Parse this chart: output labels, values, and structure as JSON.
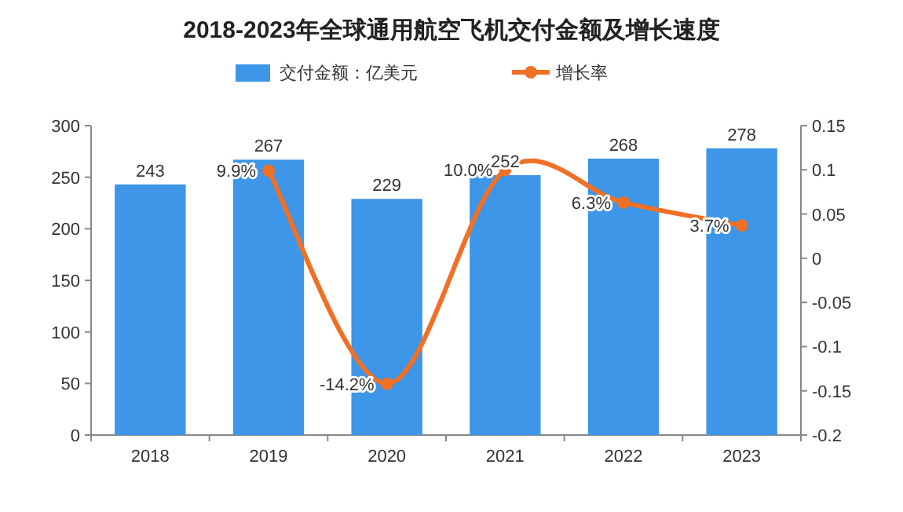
{
  "chart_data": {
    "type": "bar",
    "title": "2018-2023年全球通用航空飞机交付金额及增长速度",
    "categories": [
      "2018",
      "2019",
      "2020",
      "2021",
      "2022",
      "2023"
    ],
    "series": [
      {
        "name": "交付金额：亿美元",
        "color": "#3d96e8",
        "values": [
          243,
          267,
          229,
          252,
          268,
          278
        ],
        "value_labels": [
          "243",
          "267",
          "229",
          "252",
          "268",
          "278"
        ]
      },
      {
        "name": "增长率",
        "type": "line",
        "axis": "y2",
        "color": "#f07026",
        "marker": "circle",
        "line_style": "solid",
        "values": [
          null,
          0.099,
          -0.142,
          0.1,
          0.063,
          0.037
        ],
        "value_labels": [
          null,
          "9.9%",
          "-14.2%",
          "10.0%",
          "6.3%",
          "3.7%"
        ]
      }
    ],
    "ylim": [
      0,
      300
    ],
    "yticks": [
      0,
      50,
      100,
      150,
      200,
      250,
      300
    ],
    "y2lim": [
      -0.2,
      0.15
    ],
    "y2ticks": [
      -0.2,
      -0.15,
      -0.1,
      -0.05,
      0,
      0.05,
      0.1,
      0.15
    ],
    "grid": false,
    "legend": "top"
  }
}
